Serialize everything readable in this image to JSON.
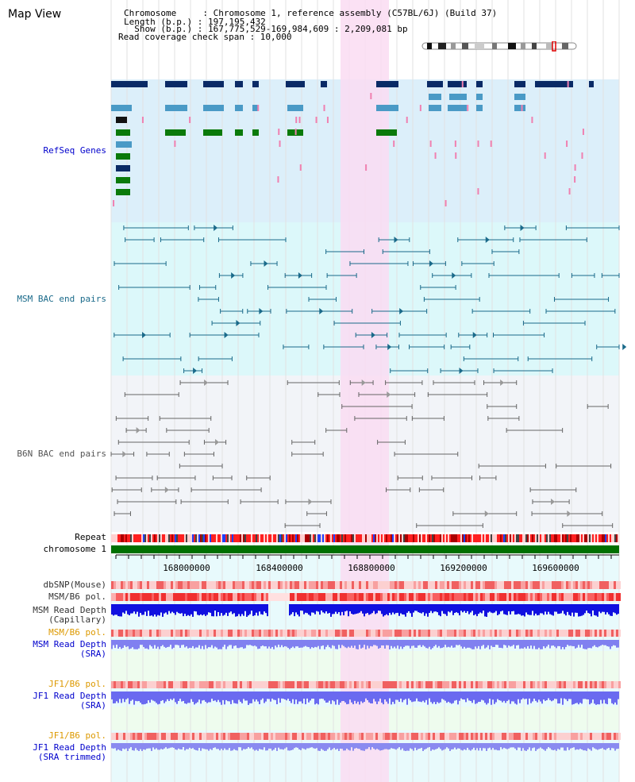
{
  "header": {
    "title": "Map View",
    "chromosome_line": "Chromosome     : Chromosome 1, reference assembly (C57BL/6J) (Build 37)",
    "length_line": "Length (b.p.) : 197,195,432",
    "show_line": "  Show (b.p.) : 167,775,529-169,984,609 : 2,209,081 bp",
    "coverage_line": "Read coverage check span : 10,000"
  },
  "tracks": {
    "refseq": "RefSeq Genes",
    "msm_bac": "MSM BAC end pairs",
    "b6n_bac": "B6N BAC end pairs",
    "repeat": "Repeat",
    "chromosome": "chromosome 1",
    "dbsnp": "dbSNP(Mouse)",
    "msm_b6_pol_cap": "MSM/B6 pol.",
    "msm_depth_cap_1": "MSM Read Depth",
    "msm_depth_cap_2": "(Capillary)",
    "msm_b6_pol_sra": "MSM/B6 pol.",
    "msm_depth_sra_1": "MSM Read Depth",
    "msm_depth_sra_2": "(SRA)",
    "jf1_b6_pol": "JF1/B6 pol.",
    "jf1_depth_sra_1": "JF1 Read Depth",
    "jf1_depth_sra_2": "(SRA)",
    "jf1_b6_pol_trim": "JF1/B6 pol.",
    "jf1_depth_trim_1": "JF1 Read Depth",
    "jf1_depth_trim_2": "(SRA trimmed)"
  },
  "axis": {
    "ticks": [
      "168000000",
      "168400000",
      "168800000",
      "169200000",
      "169600000"
    ]
  },
  "colors": {
    "refseq_bg": "#dceffa",
    "msm_bg": "#dcf8fa",
    "b6n_bg": "#f2f4f8",
    "highlight": "#fadcf2",
    "gene_navy": "#0a2a66",
    "gene_blue": "#4a9ac6",
    "gene_green": "#0a7a0a",
    "msm_bac": "#1a6a8a",
    "b6n_bac": "#666666",
    "chromosome_bar": "#007000",
    "label_blue": "#0000cc",
    "label_teal": "#1a6a8a",
    "label_orange": "#dd9900"
  }
}
